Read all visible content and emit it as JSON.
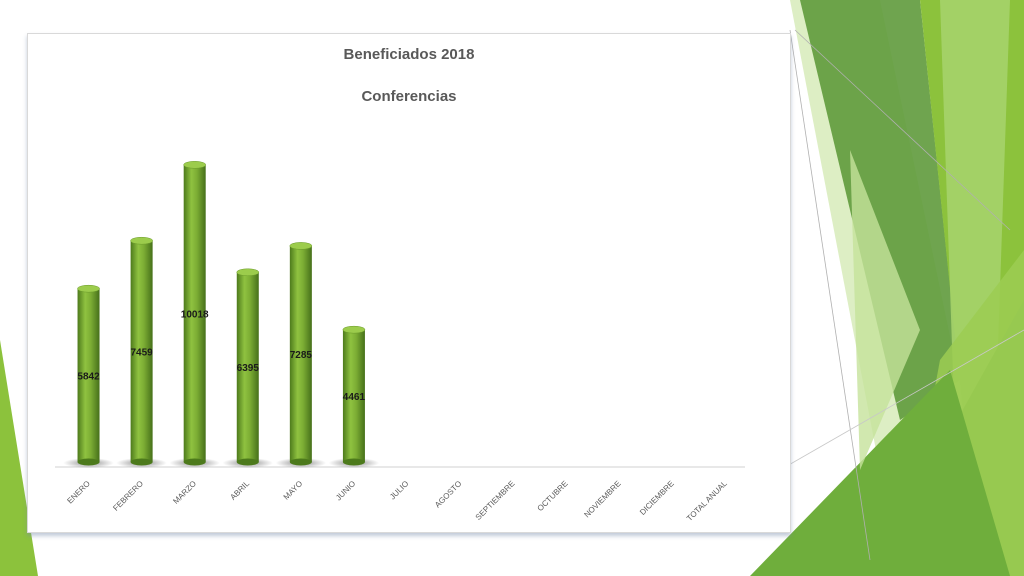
{
  "slide": {
    "colors": {
      "green_dark": "#5f9a3c",
      "green_mid": "#7cb342",
      "green_light": "#a5d36a",
      "green_pale": "#d4eab5"
    }
  },
  "chart_data": {
    "type": "bar",
    "title": "Beneficiados 2018",
    "subtitle": "Conferencias",
    "categories": [
      "ENERO",
      "FEBRERO",
      "MARZO",
      "ABRIL",
      "MAYO",
      "JUNIO",
      "JULIO",
      "AGOSTO",
      "SEPTIEMBRE",
      "OCTUBRE",
      "NOVIEMBRE",
      "DICIEMBRE",
      "TOTAL ANUAL"
    ],
    "values": [
      5842,
      7459,
      10018,
      6395,
      7285,
      4461,
      null,
      null,
      null,
      null,
      null,
      null,
      null
    ],
    "ylim": [
      0,
      12000
    ],
    "grid": false,
    "bar_color": "#76a832",
    "bar_shape": "cylinder"
  }
}
